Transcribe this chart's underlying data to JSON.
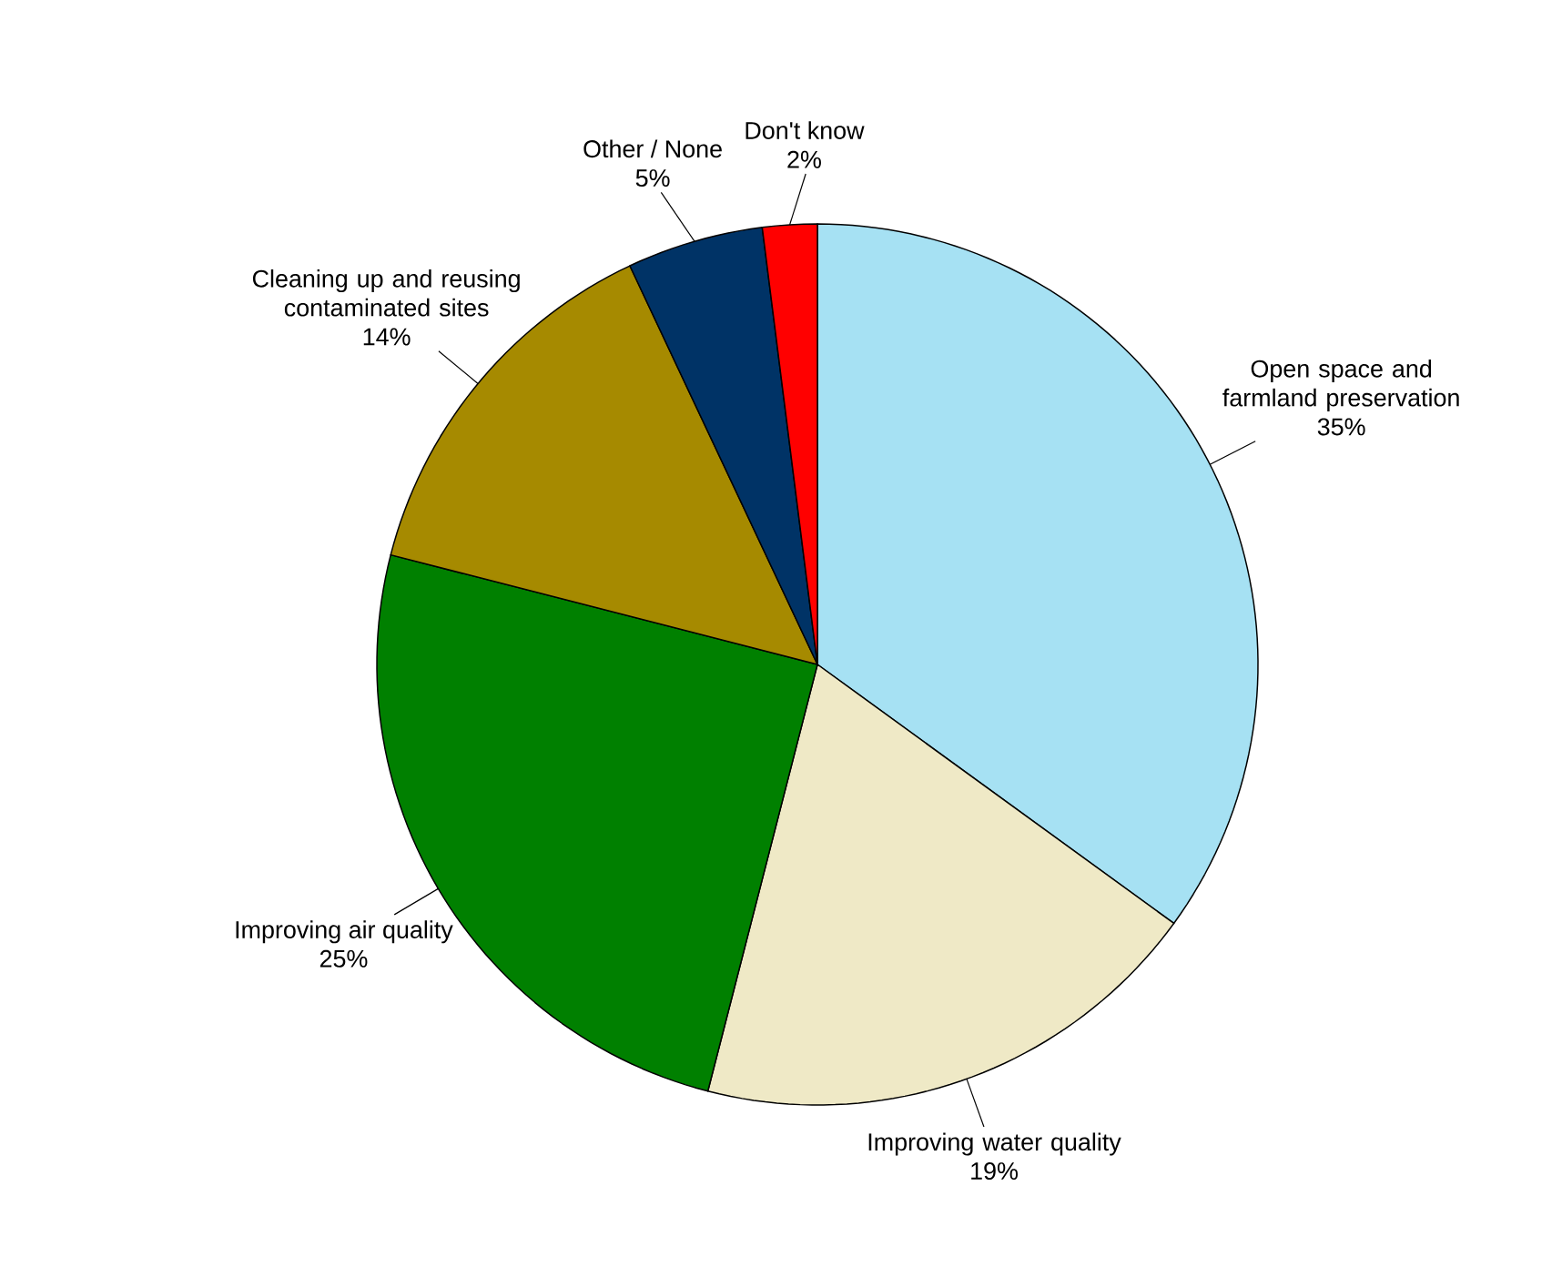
{
  "chart_data": {
    "type": "pie",
    "categories": [
      "Open space and farmland preservation",
      "Improving water quality",
      "Improving air quality",
      "Cleaning up and reusing contaminated sites",
      "Other / None",
      "Don't know"
    ],
    "values": [
      35,
      19,
      25,
      14,
      5,
      2
    ],
    "value_labels": [
      "35%",
      "19%",
      "25%",
      "14%",
      "5%",
      "2%"
    ],
    "colors": [
      "#a6e1f3",
      "#efe9c6",
      "#008000",
      "#a68a00",
      "#003366",
      "#ff0000"
    ]
  }
}
